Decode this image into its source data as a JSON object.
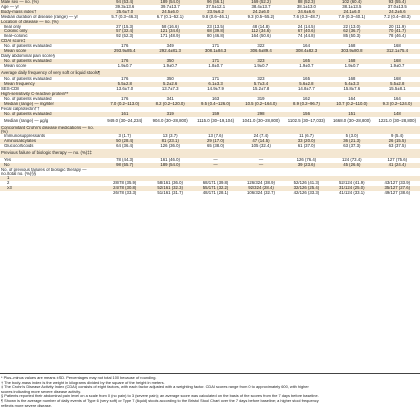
{
  "rows": [
    {
      "label": "Male sex — no. (%)",
      "indent": 0,
      "shade": true,
      "values": [
        "94 (53.4)",
        "189 (54.0)",
        "96 (56.1)",
        "169 (52.2)",
        "88 (52.3)",
        "102 (60.4)",
        "93 (55.4)"
      ]
    },
    {
      "label": "Age — yr",
      "indent": 0,
      "shade": false,
      "values": [
        "39.3±13.6",
        "39.7±13.7",
        "37.5±12.1",
        "38.4±13.7",
        "38.1±13.0",
        "38.1±13.5",
        "37.0±13.5"
      ]
    },
    {
      "label": "Body-mass index†",
      "indent": 0,
      "shade": true,
      "values": [
        "25.6±7.0",
        "24.5±6.0",
        "23.9±6.2",
        "24.2±6.0",
        "24.6±6.6",
        "24.1±6.0",
        "24.2±6.6"
      ]
    },
    {
      "label": "Median duration of disease (range) — yr",
      "indent": 0,
      "shade": false,
      "values": [
        "5.7 (0.3–46.3)",
        "6.7 (0.1–52.1)",
        "9.8 (0.6–46.1)",
        "9.3 (0.5–55.2)",
        "7.6 (0.3–48.7)",
        "7.9 (0.3–40.1)",
        "7.2 (0.4–48.3)"
      ]
    },
    {
      "label": "Location of disease — no. (%)",
      "indent": 0,
      "shade": true,
      "values": [
        "",
        "",
        "",
        "",
        "",
        "",
        ""
      ]
    },
    {
      "label": "Ileal only",
      "indent": 1,
      "shade": false,
      "values": [
        "27 (15.3)",
        "58 (16.6)",
        "23 (13.5)",
        "48 (14.8)",
        "24 (14.5)",
        "22 (13.0)",
        "20 (11.9)"
      ]
    },
    {
      "label": "Colonic only",
      "indent": 1,
      "shade": true,
      "values": [
        "57 (32.4)",
        "121 (34.6)",
        "68 (39.8)",
        "112 (34.6)",
        "67 (40.6)",
        "62 (36.7)",
        "70 (41.7)"
      ]
    },
    {
      "label": "Ileal–colonic",
      "indent": 1,
      "shade": false,
      "values": [
        "92 (52.3)",
        "171 (48.9)",
        "80 (46.8)",
        "164 (50.6)",
        "74 (44.8)",
        "85 (50.3)",
        "78 (46.4)"
      ]
    },
    {
      "label": "CDAI score‡",
      "indent": 0,
      "shade": true,
      "values": [
        "",
        "",
        "",
        "",
        "",
        "",
        ""
      ]
    },
    {
      "label": "No. of patients evaluated",
      "indent": 1,
      "shade": false,
      "values": [
        "176",
        "349",
        "171",
        "322",
        "164",
        "168",
        "168"
      ]
    },
    {
      "label": "Mean score",
      "indent": 1,
      "shade": true,
      "values": [
        "293.9±85.4",
        "292.4±81.3",
        "308.1±84.3",
        "306.6±89.4",
        "308.4±82.3",
        "303.9±80.8",
        "312.1±75.4"
      ]
    },
    {
      "label": "Daily abdominal pain score§",
      "indent": 0,
      "shade": false,
      "values": [
        "",
        "",
        "",
        "",
        "",
        "",
        ""
      ]
    },
    {
      "label": "No. of patients evaluated",
      "indent": 1,
      "shade": true,
      "values": [
        "176",
        "350",
        "171",
        "323",
        "165",
        "168",
        "168"
      ]
    },
    {
      "label": "Mean score",
      "indent": 1,
      "shade": false,
      "values": [
        "1.9±0.7",
        "1.9±0.7",
        "1.8±0.7",
        "1.9±0.7",
        "1.9±0.7",
        "1.9±0.7",
        "1.9±0.7"
      ]
    },
    {
      "label": "Average daily frequency of very soft or liquid stools¶",
      "indent": 0,
      "shade": true,
      "tall": true,
      "values": [
        "",
        "",
        "",
        "",
        "",
        "",
        ""
      ]
    },
    {
      "label": "No. of patients evaluated",
      "indent": 1,
      "shade": false,
      "values": [
        "176",
        "350",
        "171",
        "323",
        "165",
        "168",
        "168"
      ]
    },
    {
      "label": "Mean frequency",
      "indent": 1,
      "shade": true,
      "values": [
        "5.5±2.8",
        "5.2±2.6",
        "6.1±3.3",
        "5.7±3.4",
        "5.6±2.8",
        "5.4±3.3",
        "5.5±2.8"
      ]
    },
    {
      "label": "SES-CD‖",
      "indent": 0,
      "shade": false,
      "values": [
        "13.6±7.0",
        "13.7±7.3",
        "14.9±7.9",
        "15.2±7.8",
        "14.8±7.7",
        "15.8±7.6",
        "15.5±8.1"
      ]
    },
    {
      "label": "High-sensitivity C-reactive protein**",
      "indent": 0,
      "shade": true,
      "values": [
        "",
        "",
        "",
        "",
        "",
        "",
        ""
      ]
    },
    {
      "label": "No. of patients evaluated",
      "indent": 1,
      "shade": false,
      "values": [
        "176",
        "341",
        "163",
        "319",
        "162",
        "164",
        "164"
      ]
    },
    {
      "label": "Median (range) — mg/liter",
      "indent": 1,
      "shade": true,
      "values": [
        "7.0 (0.2–113.0)",
        "8.2 (0.2–120.0)",
        "9.5 (0.4–126.0)",
        "10.5 (0.2–164.0)",
        "8.9 (0.2–96.7)",
        "10.7 (0.2–110.0)",
        "9.3 (0.2–124.0)"
      ]
    },
    {
      "label": "Fecal calprotectin††",
      "indent": 0,
      "shade": false,
      "values": [
        "",
        "",
        "",
        "",
        "",
        "",
        ""
      ]
    },
    {
      "label": "No. of patients evaluated",
      "indent": 1,
      "shade": true,
      "values": [
        "161",
        "319",
        "159",
        "298",
        "156",
        "151",
        "148"
      ]
    },
    {
      "label": "Median (range) — μg/g",
      "indent": 1,
      "shade": false,
      "tall": true,
      "values": [
        "949.0 (30–24,234)",
        "904.0 (30–28,800)",
        "1115.0 (30–19,104)",
        "1041.0 (30–28,800)",
        "1102.5 (30–17,033)",
        "1668.0 (30–28,800)",
        "1221.0 (30–28,800)"
      ]
    },
    {
      "label": "Concomitant Crohn's disease medications — no. (%)",
      "indent": 0,
      "shade": true,
      "tall": true,
      "values": [
        "",
        "",
        "",
        "",
        "",
        "",
        ""
      ]
    },
    {
      "label": "Immunosuppressants",
      "indent": 1,
      "shade": false,
      "values": [
        "3 (1.7)",
        "13 (3.7)",
        "13 (7.6)",
        "24 (7.4)",
        "11 (6.7)",
        "5 (3.0)",
        "9 (5.4)"
      ]
    },
    {
      "label": "Aminosalicylates",
      "indent": 1,
      "shade": true,
      "values": [
        "50 (28.4)",
        "81 (23.1)",
        "29 (17.0)",
        "47 (14.5)",
        "33 (20.0)",
        "36 (21.3)",
        "26 (15.5)"
      ]
    },
    {
      "label": "Glucocorticoids",
      "indent": 1,
      "shade": false,
      "values": [
        "64 (36.4)",
        "126 (36.0)",
        "65 (38.0)",
        "105 (32.4)",
        "61 (37.0)",
        "63 (37.3)",
        "63 (37.5)"
      ]
    },
    {
      "label": "Previous failure of biologic therapy — no. (%)‡‡",
      "indent": 0,
      "shade": true,
      "tall": true,
      "values": [
        "",
        "",
        "",
        "",
        "",
        "",
        ""
      ]
    },
    {
      "label": "Yes",
      "indent": 1,
      "shade": false,
      "values": [
        "78 (44.3)",
        "161 (46.0)",
        "—",
        "—",
        "126 (76.4)",
        "124 (73.4)",
        "127 (75.6)"
      ]
    },
    {
      "label": "No",
      "indent": 1,
      "shade": true,
      "values": [
        "98 (55.7)",
        "189 (54.0)",
        "—",
        "—",
        "39 (23.6)",
        "45 (26.6)",
        "41 (24.4)"
      ]
    },
    {
      "label": "No. of previous failures of biologic therapy — no./total no. (%)§§",
      "indent": 0,
      "shade": false,
      "tall": true,
      "values": [
        "",
        "",
        "",
        "",
        "",
        "",
        ""
      ]
    },
    {
      "label": "1",
      "indent": 2,
      "shade": true,
      "values": [
        "",
        "",
        "",
        "",
        "",
        "",
        ""
      ]
    },
    {
      "label": "2",
      "indent": 2,
      "shade": false,
      "values": [
        "28/78 (35.9)",
        "58/161 (36.0)",
        "68/171 (39.8)",
        "126/324 (38.9)",
        "52/126 (41.3)",
        "52/124 (41.9)",
        "43/127 (33.9)"
      ]
    },
    {
      "label": "≥3",
      "indent": 2,
      "shade": true,
      "values": [
        "24/78 (30.8)",
        "52/161 (32.3)",
        "55/171 (32.2)",
        "92/324 (28.4)",
        "32/126 (25.4)",
        "31/124 (25.0)",
        "35/127 (27.6)"
      ]
    },
    {
      "label": "",
      "indent": 2,
      "shade": false,
      "values": [
        "26/78 (33.3)",
        "51/161 (31.7)",
        "48/171 (28.1)",
        "106/324 (32.7)",
        "42/126 (33.3)",
        "41/124 (33.1)",
        "49/127 (38.6)"
      ]
    }
  ],
  "footnotes": [
    "* Plus–minus values are means ±SD. Percentages may not total 100 because of rounding.",
    "† The body-mass index is the weight in kilograms divided by the square of the height in meters.",
    "‡ The Crohn's Disease Activity Index (CDAI) consists of eight factors, with each factor adjusted with a weighting factor. CDAI scores range from 0 to approximately 600, with higher",
    "   scores indicating more severe disease activity.",
    "§ Patients reported their abdominal pain level on a scale from 0 (no pain) to 3 (severe pain); an average score was calculated on the basis of the scores from the 7 days before baseline.",
    "¶ Shown is the average number of daily events of Type 6 (very soft) or Type 7 (liquid) stools according to the Bristol Stool Chart over the 7 days before baseline; a higher stool frequency",
    "   reflects more severe disease."
  ]
}
